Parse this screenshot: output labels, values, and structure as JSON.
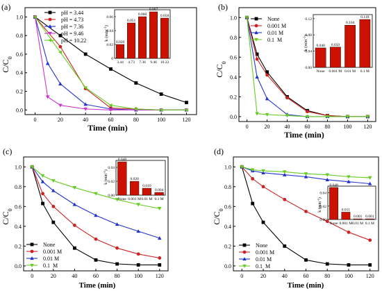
{
  "panels": [
    {
      "id": "a",
      "panel_label": "(a)",
      "xlabel": "Time (min)",
      "ylabel": "C/C",
      "ylabel_sub": "0",
      "legend": [
        "pH = 3.44",
        "pH = 4.73",
        "pH = 7.36",
        "pH = 9.46",
        "pH = 10.22"
      ],
      "inset_ylabel": "k (min",
      "inset_ylabel_sup": "-1",
      "inset_ylabel_close": ")"
    },
    {
      "id": "b",
      "panel_label": "(b)",
      "xlabel": "Time (min)",
      "ylabel": "C/C",
      "ylabel_sub": "0",
      "legend": [
        "None",
        "0.001 M",
        "0.01 M",
        "0.1  M"
      ],
      "inset_ylabel": "k (min",
      "inset_ylabel_sup": "-1",
      "inset_ylabel_close": ")"
    },
    {
      "id": "c",
      "panel_label": "(c)",
      "xlabel": "Time (min)",
      "ylabel": "C/C",
      "ylabel_sub": "0",
      "legend": [
        "None",
        "0.001 M",
        "0.01 M",
        "0.1  M"
      ],
      "inset_ylabel": "k (min",
      "inset_ylabel_sup": "-1",
      "inset_ylabel_close": ")"
    },
    {
      "id": "d",
      "panel_label": "(d)",
      "xlabel": "Time (min)",
      "ylabel": "C/C",
      "ylabel_sub": "0",
      "legend": [
        "None",
        "0.001 M",
        "0.01 M",
        "0.1  M"
      ],
      "inset_ylabel": "k (min",
      "inset_ylabel_sup": "-1",
      "inset_ylabel_close": ")"
    }
  ],
  "chart_data": [
    {
      "panel": "a",
      "type": "line",
      "xlabel": "Time (min)",
      "ylabel": "C/C0",
      "xlim": [
        -8,
        128
      ],
      "ylim": [
        -0.05,
        1.1
      ],
      "xticks": [
        0,
        20,
        40,
        60,
        80,
        100,
        120
      ],
      "yticks": [
        0.0,
        0.2,
        0.4,
        0.6,
        0.8,
        1.0
      ],
      "ytick_labels": [
        "0.0",
        "0.2",
        "0.4",
        "0.6",
        "0.8",
        "1.0"
      ],
      "grid": false,
      "legend_position": "top-left",
      "series": [
        {
          "name": "pH = 3.44",
          "color": "#000000",
          "marker": "square",
          "x": [
            0,
            20,
            40,
            60,
            80,
            100,
            120
          ],
          "y": [
            1.0,
            0.8,
            0.6,
            0.44,
            0.29,
            0.17,
            0.08
          ]
        },
        {
          "name": "pH = 4.73",
          "color": "#cc2222",
          "marker": "circle",
          "x": [
            0,
            20,
            40,
            60,
            80,
            100,
            120
          ],
          "y": [
            1.0,
            0.68,
            0.23,
            0.02,
            0.01,
            0.0,
            0.0
          ]
        },
        {
          "name": "pH = 7.36",
          "color": "#2233cc",
          "marker": "triangle-up",
          "x": [
            0,
            10,
            20,
            40,
            60,
            80,
            100,
            120
          ],
          "y": [
            1.0,
            0.5,
            0.28,
            0.06,
            0.01,
            0.0,
            0.0,
            0.0
          ]
        },
        {
          "name": "pH = 9.46",
          "color": "#cc33cc",
          "marker": "triangle-down",
          "x": [
            0,
            10,
            20,
            40,
            60,
            80,
            100,
            120
          ],
          "y": [
            1.0,
            0.14,
            0.05,
            0.01,
            0.0,
            0.0,
            0.0,
            0.0
          ]
        },
        {
          "name": "pH = 10.22",
          "color": "#66cc22",
          "marker": "triangle-left",
          "x": [
            0,
            20,
            40,
            60,
            80,
            100,
            120
          ],
          "y": [
            1.0,
            0.62,
            0.24,
            0.05,
            0.01,
            0.0,
            0.0
          ]
        }
      ],
      "inset": {
        "type": "bar",
        "categories": [
          "3.44",
          "4.73",
          "7.36",
          "9.46",
          "10.22"
        ],
        "values": [
          0.02,
          0.051,
          0.06,
          0.067,
          0.058
        ],
        "value_labels": [
          "0.020",
          "0.051",
          "0.060",
          "0.067",
          "0.058"
        ],
        "ylim": [
          0,
          0.07
        ],
        "yticks": [
          0,
          0.02,
          0.04,
          0.06
        ],
        "ytick_labels": [
          "0",
          "0.02",
          "0.04",
          "0.06"
        ],
        "ylabel": "k (min-1)",
        "bar_color": "#cc1100"
      }
    },
    {
      "panel": "b",
      "type": "line",
      "xlabel": "Time (min)",
      "ylabel": "C/C0",
      "xlim": [
        -8,
        128
      ],
      "ylim": [
        -0.05,
        1.1
      ],
      "xticks": [
        0,
        20,
        40,
        60,
        80,
        100,
        120
      ],
      "yticks": [
        0.0,
        0.2,
        0.4,
        0.6,
        0.8,
        1.0
      ],
      "ytick_labels": [
        "0.0",
        "0.2",
        "0.4",
        "0.6",
        "0.8",
        "1.0"
      ],
      "grid": false,
      "legend_position": "top-left",
      "series": [
        {
          "name": "None",
          "color": "#000000",
          "marker": "square",
          "x": [
            0,
            10,
            20,
            40,
            60,
            80,
            100,
            120
          ],
          "y": [
            1.0,
            0.63,
            0.45,
            0.2,
            0.06,
            0.01,
            0.0,
            0.0
          ]
        },
        {
          "name": "0.001 M",
          "color": "#cc2222",
          "marker": "circle",
          "x": [
            0,
            10,
            20,
            40,
            60,
            80,
            100,
            120
          ],
          "y": [
            1.0,
            0.58,
            0.42,
            0.19,
            0.05,
            0.01,
            0.0,
            0.0
          ]
        },
        {
          "name": "0.01 M",
          "color": "#2233cc",
          "marker": "triangle-up",
          "x": [
            0,
            10,
            20,
            40,
            60,
            80,
            100,
            120
          ],
          "y": [
            1.0,
            0.4,
            0.18,
            0.02,
            0.0,
            0.0,
            0.0,
            0.0
          ]
        },
        {
          "name": "0.1  M",
          "color": "#66cc22",
          "marker": "triangle-down",
          "x": [
            0,
            10,
            20,
            40,
            60,
            80,
            100,
            120
          ],
          "y": [
            1.0,
            0.03,
            0.02,
            0.01,
            0.0,
            0.0,
            0.0,
            0.0
          ]
        }
      ],
      "inset": {
        "type": "bar",
        "categories": [
          "None",
          "0.001 M",
          "0.01 M",
          "0.1 M"
        ],
        "values": [
          0.048,
          0.05,
          0.104,
          0.118
        ],
        "value_labels": [
          "0.048",
          "0.050",
          "0.104",
          "0.118"
        ],
        "ylim": [
          0,
          0.13
        ],
        "yticks": [
          0,
          0.04,
          0.08,
          0.12
        ],
        "ytick_labels": [
          "0.00",
          "0.04",
          "0.08",
          "0.12"
        ],
        "ylabel": "k (min-1)",
        "bar_color": "#cc1100"
      }
    },
    {
      "panel": "c",
      "type": "line",
      "xlabel": "Time (min)",
      "ylabel": "C/C0",
      "xlim": [
        -8,
        128
      ],
      "ylim": [
        -0.05,
        1.1
      ],
      "xticks": [
        0,
        20,
        40,
        60,
        80,
        100,
        120
      ],
      "yticks": [
        0.0,
        0.2,
        0.4,
        0.6,
        0.8,
        1.0
      ],
      "ytick_labels": [
        "0.0",
        "0.2",
        "0.4",
        "0.6",
        "0.8",
        "1.0"
      ],
      "grid": false,
      "legend_position": "bottom-left",
      "series": [
        {
          "name": "None",
          "color": "#000000",
          "marker": "square",
          "x": [
            0,
            10,
            20,
            40,
            60,
            80,
            100,
            120
          ],
          "y": [
            1.0,
            0.63,
            0.44,
            0.18,
            0.06,
            0.02,
            0.01,
            0.01
          ]
        },
        {
          "name": "0.001 M",
          "color": "#cc2222",
          "marker": "circle",
          "x": [
            0,
            10,
            20,
            40,
            60,
            80,
            100,
            120
          ],
          "y": [
            1.0,
            0.73,
            0.6,
            0.41,
            0.27,
            0.18,
            0.12,
            0.08
          ]
        },
        {
          "name": "0.01 M",
          "color": "#2233cc",
          "marker": "triangle-up",
          "x": [
            0,
            10,
            20,
            40,
            60,
            80,
            100,
            120
          ],
          "y": [
            1.0,
            0.85,
            0.76,
            0.62,
            0.51,
            0.42,
            0.35,
            0.28
          ]
        },
        {
          "name": "0.1  M",
          "color": "#66cc22",
          "marker": "triangle-down",
          "x": [
            0,
            10,
            20,
            40,
            60,
            80,
            100,
            120
          ],
          "y": [
            1.0,
            0.91,
            0.86,
            0.79,
            0.73,
            0.67,
            0.62,
            0.58
          ]
        }
      ],
      "inset": {
        "type": "bar",
        "categories": [
          "None",
          "0.001 M",
          "0.01 M",
          "0.1 M"
        ],
        "values": [
          0.048,
          0.02,
          0.01,
          0.004
        ],
        "value_labels": [
          "0.048",
          "0.020",
          "0.010",
          "0.004"
        ],
        "ylim": [
          0,
          0.05
        ],
        "yticks": [
          0,
          0.02,
          0.04
        ],
        "ytick_labels": [
          "0.00",
          "0.02",
          "0.04"
        ],
        "ylabel": "k (min-1)",
        "bar_color": "#cc1100"
      }
    },
    {
      "panel": "d",
      "type": "line",
      "xlabel": "Time (min)",
      "ylabel": "C/C0",
      "xlim": [
        -8,
        128
      ],
      "ylim": [
        -0.05,
        1.1
      ],
      "xticks": [
        0,
        20,
        40,
        60,
        80,
        100,
        120
      ],
      "yticks": [
        0.0,
        0.2,
        0.4,
        0.6,
        0.8,
        1.0
      ],
      "ytick_labels": [
        "0.0",
        "0.2",
        "0.4",
        "0.6",
        "0.8",
        "1.0"
      ],
      "grid": false,
      "legend_position": "bottom-left",
      "series": [
        {
          "name": "None",
          "color": "#000000",
          "marker": "square",
          "x": [
            0,
            10,
            20,
            40,
            60,
            80,
            100,
            120
          ],
          "y": [
            1.0,
            0.63,
            0.44,
            0.2,
            0.06,
            0.02,
            0.01,
            0.01
          ]
        },
        {
          "name": "0.001 M",
          "color": "#cc2222",
          "marker": "circle",
          "x": [
            0,
            10,
            20,
            40,
            60,
            80,
            100,
            120
          ],
          "y": [
            1.0,
            0.88,
            0.8,
            0.67,
            0.55,
            0.45,
            0.34,
            0.26
          ]
        },
        {
          "name": "0.01 M",
          "color": "#2233cc",
          "marker": "triangle-up",
          "x": [
            0,
            10,
            20,
            40,
            60,
            80,
            100,
            120
          ],
          "y": [
            1.0,
            0.96,
            0.94,
            0.92,
            0.9,
            0.87,
            0.85,
            0.83
          ]
        },
        {
          "name": "0.1  M",
          "color": "#66cc22",
          "marker": "triangle-down",
          "x": [
            0,
            10,
            20,
            40,
            60,
            80,
            100,
            120
          ],
          "y": [
            1.0,
            0.97,
            0.96,
            0.95,
            0.93,
            0.92,
            0.9,
            0.89
          ]
        }
      ],
      "inset": {
        "type": "bar",
        "categories": [
          "None",
          "0.001 M",
          "0.01 M",
          "0.1 M"
        ],
        "values": [
          0.048,
          0.011,
          0.001,
          0.001
        ],
        "value_labels": [
          "0.048",
          "0.011",
          "0.001",
          "0.001"
        ],
        "ylim": [
          0,
          0.05
        ],
        "yticks": [
          0,
          0.02,
          0.04
        ],
        "ytick_labels": [
          "0.00",
          "0.02",
          "0.04"
        ],
        "ylabel": "k (min-1)",
        "bar_color": "#cc1100"
      }
    }
  ]
}
